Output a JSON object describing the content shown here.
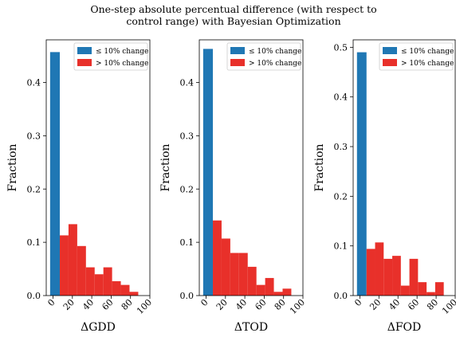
{
  "title_line1": "One-step absolute percentual difference (with respect to",
  "title_line2": "control range) with Bayesian Optimization",
  "colors": {
    "small": "#1f77b4",
    "large": "#e8302a"
  },
  "legend": {
    "small_label": "≤ 10% change",
    "large_label": "> 10% change"
  },
  "chart_data": [
    {
      "type": "bar",
      "xlabel": "ΔGDD",
      "ylabel": "Fraction",
      "xlim": [
        -7,
        100
      ],
      "ylim": [
        0,
        0.48
      ],
      "yticks": [
        0.0,
        0.1,
        0.2,
        0.3,
        0.4
      ],
      "ytick_labels": [
        "0.0",
        "0.1",
        "0.2",
        "0.3",
        "0.4"
      ],
      "xticks": [
        0,
        20,
        40,
        60,
        80,
        100
      ],
      "xtick_labels": [
        "0",
        "20",
        "40",
        "60",
        "80",
        "100"
      ],
      "legend_position": "top-right",
      "series": [
        {
          "name": "≤ 10% change",
          "color": "#1f77b4",
          "bins": [
            [
              -3,
              7
            ]
          ],
          "values": [
            0.457
          ]
        },
        {
          "name": "> 10% change",
          "color": "#e8302a",
          "bins": [
            [
              7,
              16
            ],
            [
              16,
              25
            ],
            [
              25,
              34
            ],
            [
              34,
              43
            ],
            [
              43,
              52
            ],
            [
              52,
              61
            ],
            [
              61,
              70
            ],
            [
              70,
              79
            ],
            [
              79,
              88
            ],
            [
              88,
              97
            ]
          ],
          "values": [
            0.113,
            0.134,
            0.093,
            0.053,
            0.04,
            0.053,
            0.027,
            0.02,
            0.007,
            0.0
          ]
        }
      ]
    },
    {
      "type": "bar",
      "xlabel": "ΔTOD",
      "ylabel": "Fraction",
      "xlim": [
        -7,
        100
      ],
      "ylim": [
        0,
        0.48
      ],
      "yticks": [
        0.0,
        0.1,
        0.2,
        0.3,
        0.4
      ],
      "ytick_labels": [
        "0.0",
        "0.1",
        "0.2",
        "0.3",
        "0.4"
      ],
      "xticks": [
        0,
        20,
        40,
        60,
        80,
        100
      ],
      "xtick_labels": [
        "0",
        "20",
        "40",
        "60",
        "80",
        "100"
      ],
      "legend_position": "top-right",
      "series": [
        {
          "name": "≤ 10% change",
          "color": "#1f77b4",
          "bins": [
            [
              -3,
              7
            ]
          ],
          "values": [
            0.463
          ]
        },
        {
          "name": "> 10% change",
          "color": "#e8302a",
          "bins": [
            [
              7,
              16
            ],
            [
              16,
              25
            ],
            [
              25,
              34
            ],
            [
              34,
              43
            ],
            [
              43,
              52
            ],
            [
              52,
              61
            ],
            [
              61,
              70
            ],
            [
              70,
              79
            ],
            [
              79,
              88
            ],
            [
              88,
              97
            ]
          ],
          "values": [
            0.141,
            0.107,
            0.08,
            0.08,
            0.054,
            0.02,
            0.033,
            0.007,
            0.013,
            0.0
          ]
        }
      ]
    },
    {
      "type": "bar",
      "xlabel": "ΔFOD",
      "ylabel": "Fraction",
      "xlim": [
        -7,
        100
      ],
      "ylim": [
        0,
        0.515
      ],
      "yticks": [
        0.0,
        0.1,
        0.2,
        0.3,
        0.4,
        0.5
      ],
      "ytick_labels": [
        "0.0",
        "0.1",
        "0.2",
        "0.3",
        "0.4",
        "0.5"
      ],
      "xticks": [
        0,
        20,
        40,
        60,
        80,
        100
      ],
      "xtick_labels": [
        "0",
        "20",
        "40",
        "60",
        "80",
        "100"
      ],
      "legend_position": "top-right",
      "series": [
        {
          "name": "≤ 10% change",
          "color": "#1f77b4",
          "bins": [
            [
              -3,
              7
            ]
          ],
          "values": [
            0.49
          ]
        },
        {
          "name": "> 10% change",
          "color": "#e8302a",
          "bins": [
            [
              7,
              16
            ],
            [
              16,
              25
            ],
            [
              25,
              34
            ],
            [
              34,
              43
            ],
            [
              43,
              52
            ],
            [
              52,
              61
            ],
            [
              61,
              70
            ],
            [
              70,
              79
            ],
            [
              79,
              88
            ],
            [
              88,
              97
            ]
          ],
          "values": [
            0.094,
            0.107,
            0.074,
            0.08,
            0.02,
            0.074,
            0.027,
            0.007,
            0.027,
            0.0
          ]
        }
      ]
    }
  ]
}
